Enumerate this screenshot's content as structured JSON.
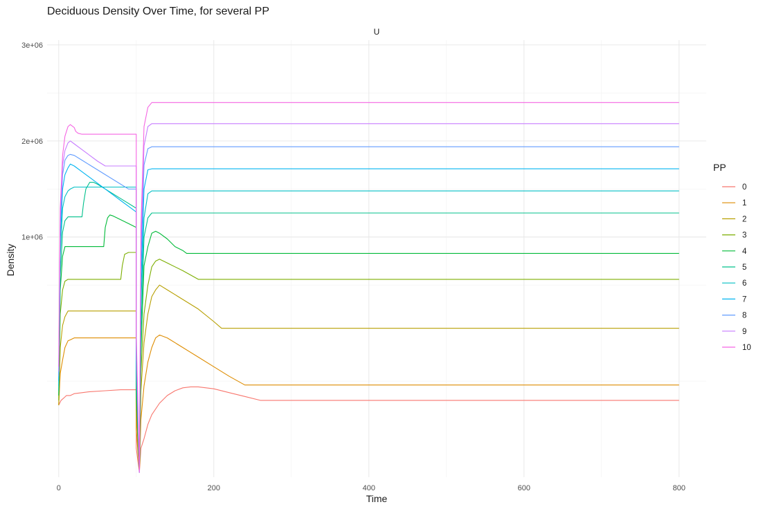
{
  "chart_data": {
    "type": "line",
    "title": "Deciduous Density Over Time, for several PP",
    "facet_label": "U",
    "xlabel": "Time",
    "ylabel": "Density",
    "xlim": [
      -15,
      835
    ],
    "ylim": [
      -1500000,
      3050000
    ],
    "x_ticks": [
      0,
      200,
      400,
      600,
      800
    ],
    "x_tick_labels": [
      "0",
      "200",
      "400",
      "600",
      "800"
    ],
    "x_minor": [
      100,
      300,
      500,
      700
    ],
    "y_ticks": [
      1000000,
      2000000,
      3000000
    ],
    "y_tick_labels": [
      "1e+06",
      "2e+06",
      "3e+06"
    ],
    "y_minor": [
      -500000,
      500000,
      1500000,
      2500000
    ],
    "grid": true,
    "legend_title": "PP",
    "legend_position": "right",
    "series": [
      {
        "name": "0",
        "color": "#F8766D",
        "x": [
          0,
          3,
          6,
          10,
          15,
          20,
          30,
          40,
          60,
          80,
          100,
          100,
          104,
          106,
          110,
          115,
          120,
          130,
          140,
          150,
          160,
          170,
          180,
          200,
          220,
          240,
          260,
          280,
          300,
          400,
          500,
          600,
          700,
          800
        ],
        "y": [
          -750000,
          -700000,
          -680000,
          -650000,
          -650000,
          -630000,
          -620000,
          -610000,
          -600000,
          -590000,
          -590000,
          -1200000,
          -1450000,
          -1200000,
          -1100000,
          -950000,
          -850000,
          -730000,
          -650000,
          -600000,
          -570000,
          -560000,
          -560000,
          -580000,
          -620000,
          -660000,
          -700000,
          -700000,
          -700000,
          -700000,
          -700000,
          -700000,
          -700000,
          -700000
        ]
      },
      {
        "name": "1",
        "color": "#DE8C00",
        "x": [
          0,
          2,
          5,
          8,
          12,
          15,
          20,
          30,
          50,
          80,
          100,
          100,
          104,
          106,
          110,
          115,
          120,
          125,
          130,
          140,
          160,
          180,
          200,
          220,
          240,
          260,
          300,
          400,
          500,
          600,
          700,
          800
        ],
        "y": [
          -750000,
          -420000,
          -280000,
          -150000,
          -80000,
          -70000,
          -50000,
          -50000,
          -50000,
          -50000,
          -50000,
          -1000000,
          -1450000,
          -900000,
          -550000,
          -300000,
          -150000,
          -50000,
          -20000,
          -50000,
          -150000,
          -250000,
          -350000,
          -450000,
          -540000,
          -540000,
          -540000,
          -540000,
          -540000,
          -540000,
          -540000,
          -540000
        ]
      },
      {
        "name": "2",
        "color": "#B79F00",
        "x": [
          0,
          2,
          5,
          8,
          12,
          15,
          20,
          30,
          50,
          80,
          100,
          100,
          104,
          106,
          110,
          115,
          120,
          125,
          130,
          140,
          160,
          180,
          200,
          210,
          240,
          300,
          400,
          500,
          600,
          700,
          800
        ],
        "y": [
          -750000,
          -150000,
          80000,
          170000,
          230000,
          230000,
          230000,
          230000,
          230000,
          230000,
          230000,
          -800000,
          -1450000,
          -600000,
          -100000,
          200000,
          380000,
          450000,
          500000,
          450000,
          350000,
          250000,
          120000,
          50000,
          50000,
          50000,
          50000,
          50000,
          50000,
          50000,
          50000
        ]
      },
      {
        "name": "3",
        "color": "#7CAE00",
        "x": [
          0,
          2,
          5,
          8,
          12,
          15,
          20,
          30,
          50,
          70,
          80,
          82,
          85,
          90,
          100,
          100,
          104,
          106,
          110,
          115,
          120,
          125,
          130,
          140,
          160,
          180,
          185,
          200,
          300,
          400,
          500,
          600,
          700,
          800
        ],
        "y": [
          -700000,
          200000,
          450000,
          540000,
          560000,
          560000,
          560000,
          560000,
          560000,
          560000,
          560000,
          700000,
          820000,
          840000,
          840000,
          -700000,
          -1450000,
          -400000,
          200000,
          500000,
          690000,
          750000,
          770000,
          730000,
          650000,
          560000,
          560000,
          560000,
          560000,
          560000,
          560000,
          560000,
          560000,
          560000
        ]
      },
      {
        "name": "4",
        "color": "#00BA38",
        "x": [
          0,
          2,
          5,
          8,
          12,
          15,
          20,
          30,
          50,
          58,
          60,
          63,
          66,
          70,
          80,
          90,
          100,
          100,
          104,
          106,
          110,
          115,
          120,
          125,
          130,
          140,
          150,
          160,
          165,
          200,
          300,
          400,
          500,
          600,
          700,
          800
        ],
        "y": [
          -650000,
          450000,
          800000,
          900000,
          900000,
          900000,
          900000,
          900000,
          900000,
          900000,
          1100000,
          1200000,
          1230000,
          1220000,
          1180000,
          1140000,
          1100000,
          -600000,
          -1450000,
          -200000,
          700000,
          900000,
          1040000,
          1060000,
          1040000,
          980000,
          900000,
          860000,
          830000,
          830000,
          830000,
          830000,
          830000,
          830000,
          830000,
          830000
        ]
      },
      {
        "name": "5",
        "color": "#00C08B",
        "x": [
          0,
          2,
          5,
          8,
          12,
          15,
          20,
          30,
          32,
          35,
          40,
          45,
          50,
          60,
          80,
          100,
          100,
          104,
          106,
          110,
          115,
          120,
          130,
          140,
          150,
          200,
          300,
          400,
          500,
          600,
          700,
          800
        ],
        "y": [
          -600000,
          600000,
          1050000,
          1170000,
          1210000,
          1210000,
          1210000,
          1210000,
          1350000,
          1500000,
          1570000,
          1570000,
          1550000,
          1500000,
          1400000,
          1300000,
          -500000,
          -1450000,
          0,
          1000000,
          1200000,
          1250000,
          1250000,
          1250000,
          1250000,
          1250000,
          1250000,
          1250000,
          1250000,
          1250000,
          1250000,
          1250000
        ]
      },
      {
        "name": "6",
        "color": "#00BFC4",
        "x": [
          0,
          2,
          5,
          8,
          12,
          15,
          20,
          30,
          40,
          60,
          80,
          100,
          100,
          104,
          106,
          110,
          115,
          120,
          130,
          140,
          150,
          200,
          300,
          400,
          500,
          600,
          700,
          800
        ],
        "y": [
          -550000,
          800000,
          1300000,
          1420000,
          1480000,
          1500000,
          1520000,
          1520000,
          1520000,
          1520000,
          1520000,
          1520000,
          -400000,
          -1450000,
          300000,
          1200000,
          1450000,
          1480000,
          1480000,
          1480000,
          1480000,
          1480000,
          1480000,
          1480000,
          1480000,
          1480000,
          1480000,
          1480000
        ]
      },
      {
        "name": "7",
        "color": "#00B4F0",
        "x": [
          0,
          2,
          5,
          8,
          12,
          15,
          20,
          30,
          40,
          60,
          80,
          100,
          100,
          104,
          106,
          110,
          115,
          120,
          130,
          200,
          300,
          400,
          500,
          600,
          700,
          800
        ],
        "y": [
          -500000,
          950000,
          1500000,
          1650000,
          1720000,
          1760000,
          1740000,
          1680000,
          1620000,
          1500000,
          1380000,
          1260000,
          -300000,
          -1450000,
          500000,
          1500000,
          1700000,
          1710000,
          1710000,
          1710000,
          1710000,
          1710000,
          1710000,
          1710000,
          1710000,
          1710000
        ]
      },
      {
        "name": "8",
        "color": "#619CFF",
        "x": [
          0,
          2,
          5,
          8,
          12,
          15,
          20,
          30,
          40,
          60,
          80,
          90,
          100,
          100,
          104,
          106,
          110,
          115,
          120,
          130,
          200,
          300,
          400,
          500,
          600,
          700,
          800
        ],
        "y": [
          -450000,
          1100000,
          1650000,
          1800000,
          1850000,
          1860000,
          1850000,
          1800000,
          1750000,
          1650000,
          1550000,
          1500000,
          1500000,
          -200000,
          -1450000,
          700000,
          1750000,
          1920000,
          1940000,
          1940000,
          1940000,
          1940000,
          1940000,
          1940000,
          1940000,
          1940000,
          1940000
        ]
      },
      {
        "name": "9",
        "color": "#C77CFF",
        "x": [
          0,
          2,
          5,
          8,
          12,
          15,
          20,
          30,
          40,
          50,
          60,
          80,
          100,
          100,
          104,
          106,
          110,
          115,
          120,
          130,
          200,
          300,
          400,
          500,
          600,
          700,
          800
        ],
        "y": [
          -400000,
          1200000,
          1750000,
          1900000,
          1980000,
          2000000,
          1970000,
          1910000,
          1850000,
          1790000,
          1740000,
          1740000,
          1740000,
          -100000,
          -1450000,
          900000,
          1950000,
          2150000,
          2180000,
          2180000,
          2180000,
          2180000,
          2180000,
          2180000,
          2180000,
          2180000,
          2180000
        ]
      },
      {
        "name": "10",
        "color": "#F564E3",
        "x": [
          0,
          2,
          5,
          8,
          12,
          15,
          20,
          22,
          25,
          30,
          40,
          60,
          80,
          100,
          100,
          104,
          106,
          110,
          115,
          120,
          130,
          200,
          300,
          400,
          500,
          600,
          700,
          800
        ],
        "y": [
          -350000,
          1300000,
          1850000,
          2050000,
          2150000,
          2170000,
          2140000,
          2100000,
          2080000,
          2070000,
          2070000,
          2070000,
          2070000,
          2070000,
          0,
          -1450000,
          1100000,
          2150000,
          2350000,
          2400000,
          2400000,
          2400000,
          2400000,
          2400000,
          2400000,
          2400000,
          2400000,
          2400000
        ]
      }
    ]
  }
}
